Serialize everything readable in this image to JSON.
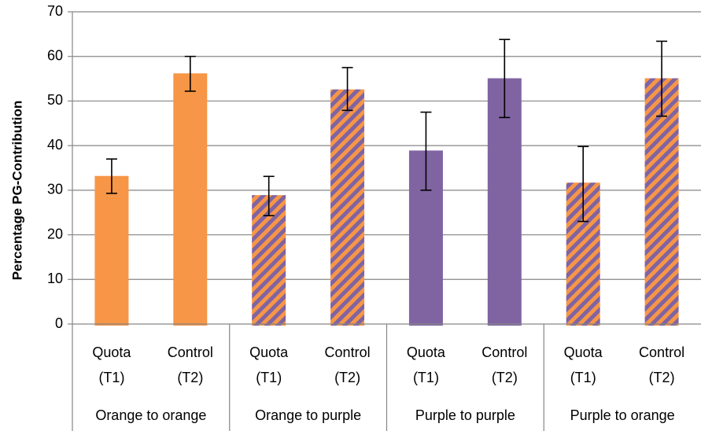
{
  "chart_data": {
    "type": "bar",
    "ylabel": "Percentage PG-Contribution",
    "xlabel": "",
    "ylim": [
      0,
      70
    ],
    "yticks": [
      0,
      10,
      20,
      30,
      40,
      50,
      60,
      70
    ],
    "grid": true,
    "groups": [
      "Orange to orange",
      "Orange to purple",
      "Purple to purple",
      "Purple to orange"
    ],
    "categories": [
      {
        "group": "Orange to orange",
        "line1": "Quota",
        "line2": "(T1)",
        "value": 33.2,
        "err_low": 29.3,
        "err_high": 37.0,
        "fill": "solid",
        "color": "#F79646"
      },
      {
        "group": "Orange to orange",
        "line1": "Control",
        "line2": "(T2)",
        "value": 56.2,
        "err_low": 52.2,
        "err_high": 60.0,
        "fill": "solid",
        "color": "#F79646"
      },
      {
        "group": "Orange to purple",
        "line1": "Quota",
        "line2": "(T1)",
        "value": 28.9,
        "err_low": 24.3,
        "err_high": 33.1,
        "fill": "striped",
        "color": "#F79646",
        "stripe_color": "#8064A2"
      },
      {
        "group": "Orange to purple",
        "line1": "Control",
        "line2": "(T2)",
        "value": 52.6,
        "err_low": 47.9,
        "err_high": 57.5,
        "fill": "striped",
        "color": "#F79646",
        "stripe_color": "#8064A2"
      },
      {
        "group": "Purple to purple",
        "line1": "Quota",
        "line2": "(T1)",
        "value": 38.9,
        "err_low": 30.0,
        "err_high": 47.5,
        "fill": "solid",
        "color": "#8064A2"
      },
      {
        "group": "Purple to purple",
        "line1": "Control",
        "line2": "(T2)",
        "value": 55.1,
        "err_low": 46.3,
        "err_high": 63.8,
        "fill": "solid",
        "color": "#8064A2"
      },
      {
        "group": "Purple to orange",
        "line1": "Quota",
        "line2": "(T1)",
        "value": 31.7,
        "err_low": 23.0,
        "err_high": 39.8,
        "fill": "striped",
        "color": "#8064A2",
        "stripe_color": "#F79646"
      },
      {
        "group": "Purple to orange",
        "line1": "Control",
        "line2": "(T2)",
        "value": 55.1,
        "err_low": 46.6,
        "err_high": 63.4,
        "fill": "striped",
        "color": "#8064A2",
        "stripe_color": "#F79646"
      }
    ],
    "colors": {
      "orange": "#F79646",
      "purple": "#8064A2",
      "grid": "#868686",
      "error_bar": "#000000"
    }
  }
}
